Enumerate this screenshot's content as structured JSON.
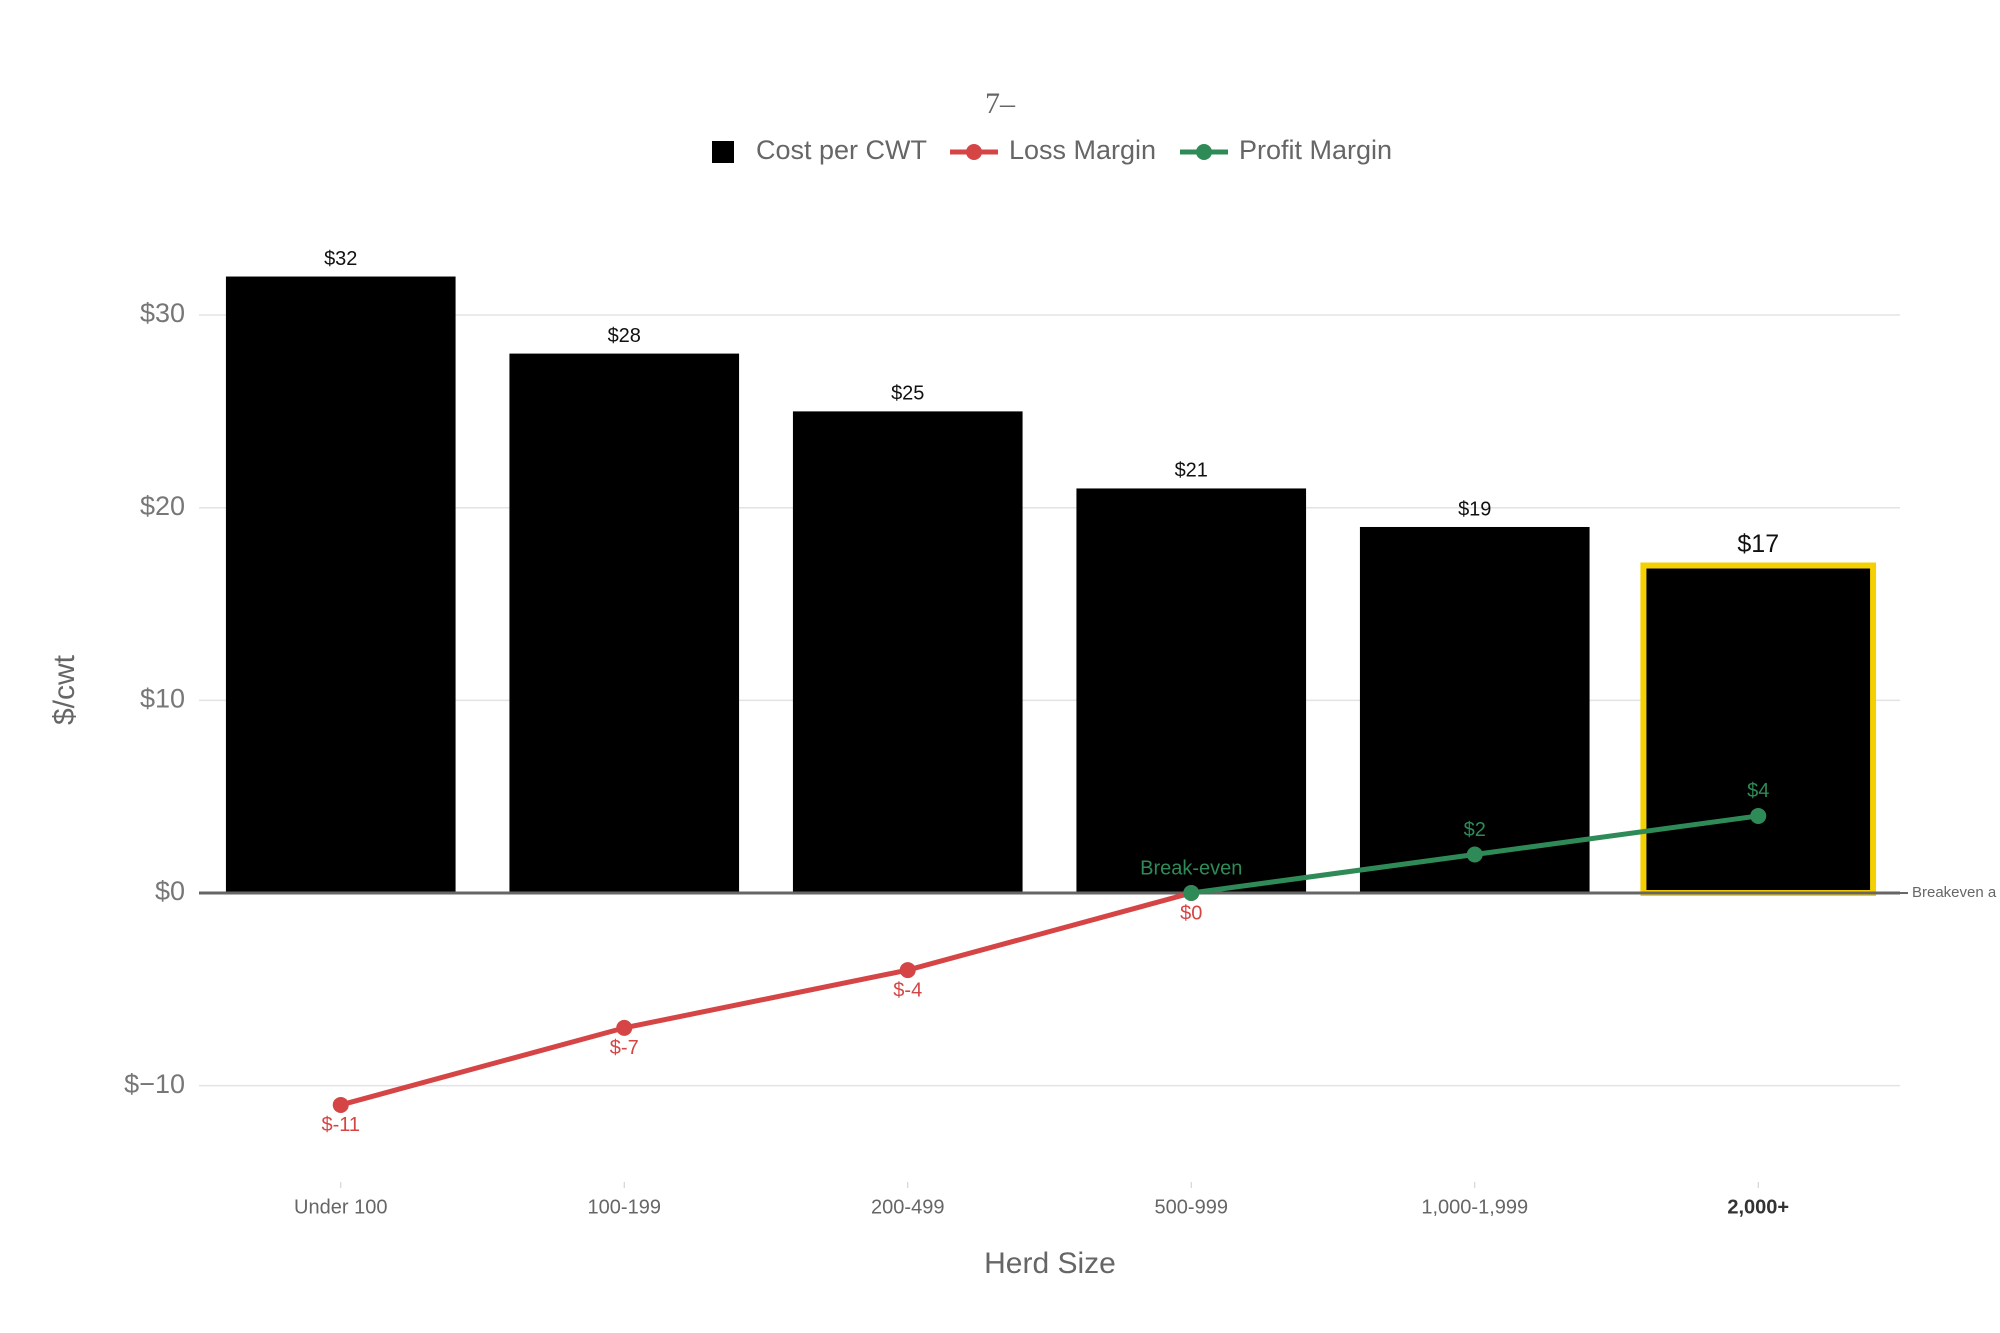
{
  "chart_data": {
    "type": "bar_line",
    "title": "7–",
    "x_label": "Herd Size",
    "y_label": "$/cwt",
    "categories": [
      "Under 100",
      "100-199",
      "200-499",
      "500-999",
      "1,000-1,999",
      "2,000+"
    ],
    "series": [
      {
        "name": "Cost per CWT",
        "type": "bar",
        "color": "#000000",
        "values": [
          32,
          28,
          25,
          21,
          19,
          17
        ],
        "value_labels": [
          "$32",
          "$28",
          "$25",
          "$21",
          "$19",
          "$17"
        ]
      },
      {
        "name": "Loss Margin",
        "type": "line",
        "color": "#d64545",
        "values": [
          -11,
          -7,
          -4,
          0,
          null,
          null
        ],
        "value_labels": [
          "$-11",
          "$-7",
          "$-4",
          "$0",
          null,
          null
        ]
      },
      {
        "name": "Profit Margin",
        "type": "line",
        "color": "#2e8b57",
        "values": [
          null,
          null,
          null,
          0,
          2,
          4
        ],
        "value_labels": [
          null,
          null,
          null,
          "Break-even",
          "$2",
          "$4"
        ]
      }
    ],
    "highlight_index": 5,
    "highlight_color": "#f5d000",
    "ylim": [
      -15,
      34
    ],
    "yticks": [
      {
        "value": -10,
        "label": "$−10"
      },
      {
        "value": 0,
        "label": "$0"
      },
      {
        "value": 10,
        "label": "$10"
      },
      {
        "value": 20,
        "label": "$20"
      },
      {
        "value": 30,
        "label": "$30"
      }
    ],
    "grid": true,
    "annotations": [
      {
        "text": "Breakeven a",
        "y": 0
      }
    ]
  }
}
